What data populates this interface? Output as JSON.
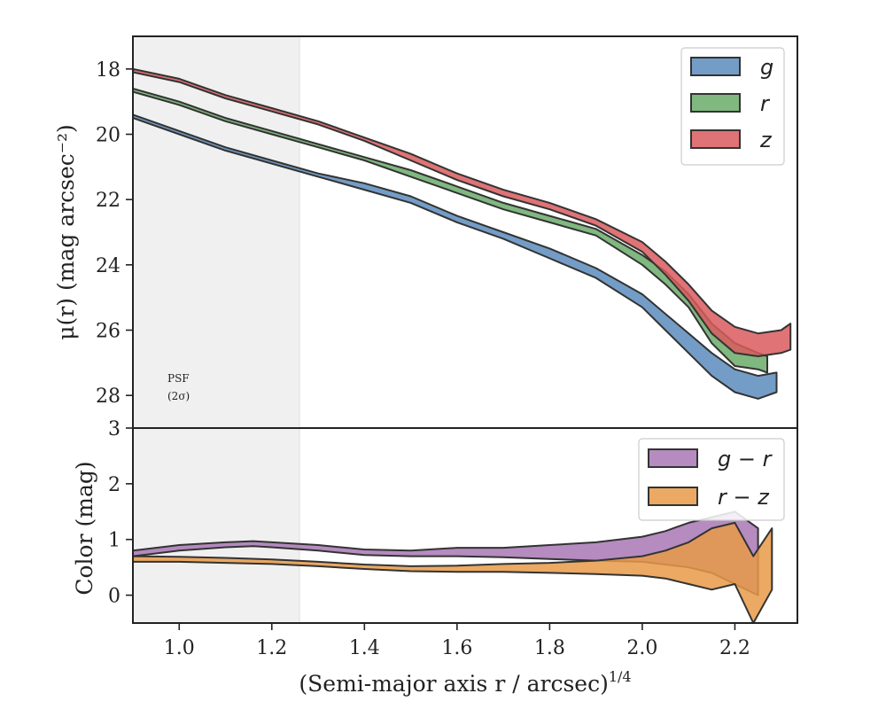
{
  "chart_data": [
    {
      "type": "area",
      "panel": "surface-brightness",
      "ylabel": "μ(r) (mag arcsec⁻²)",
      "xlim": [
        0.9,
        2.335
      ],
      "ylim": [
        29.0,
        17.0
      ],
      "y_inverted": true,
      "yticks": [
        18,
        20,
        22,
        24,
        26,
        28
      ],
      "psf_region": {
        "x_range": [
          0.9,
          1.26
        ],
        "label_line1": "PSF",
        "label_line2": "(2σ)"
      },
      "legend": {
        "placement": "top-right",
        "entries": [
          "g",
          "r",
          "z"
        ]
      },
      "series": [
        {
          "name": "g",
          "color": "#5b8cbd",
          "x": [
            0.9,
            1.0,
            1.1,
            1.2,
            1.3,
            1.4,
            1.5,
            1.6,
            1.7,
            1.8,
            1.9,
            2.0,
            2.05,
            2.1,
            2.15,
            2.2,
            2.25,
            2.29
          ],
          "lower": [
            19.4,
            19.9,
            20.4,
            20.8,
            21.2,
            21.5,
            21.9,
            22.5,
            23.0,
            23.5,
            24.1,
            24.9,
            25.5,
            26.1,
            26.7,
            27.2,
            27.4,
            27.3
          ],
          "upper": [
            19.5,
            20.0,
            20.5,
            20.9,
            21.3,
            21.7,
            22.1,
            22.7,
            23.2,
            23.8,
            24.4,
            25.3,
            26.0,
            26.7,
            27.4,
            27.9,
            28.1,
            27.9
          ]
        },
        {
          "name": "r",
          "color": "#6aab6a",
          "x": [
            0.9,
            1.0,
            1.1,
            1.2,
            1.3,
            1.4,
            1.5,
            1.6,
            1.7,
            1.8,
            1.9,
            2.0,
            2.05,
            2.1,
            2.15,
            2.2,
            2.25,
            2.27
          ],
          "lower": [
            18.6,
            19.0,
            19.5,
            19.9,
            20.3,
            20.7,
            21.1,
            21.6,
            22.1,
            22.5,
            22.9,
            23.7,
            24.2,
            24.9,
            25.8,
            26.4,
            26.7,
            26.8
          ],
          "upper": [
            18.7,
            19.1,
            19.6,
            20.0,
            20.4,
            20.8,
            21.3,
            21.8,
            22.3,
            22.7,
            23.1,
            24.0,
            24.6,
            25.3,
            26.4,
            27.1,
            27.2,
            27.3
          ]
        },
        {
          "name": "z",
          "color": "#d95a5e",
          "x": [
            0.9,
            1.0,
            1.1,
            1.2,
            1.3,
            1.4,
            1.5,
            1.6,
            1.7,
            1.8,
            1.9,
            2.0,
            2.05,
            2.1,
            2.15,
            2.2,
            2.25,
            2.3,
            2.32
          ],
          "lower": [
            18.0,
            18.3,
            18.8,
            19.2,
            19.6,
            20.1,
            20.6,
            21.2,
            21.7,
            22.1,
            22.6,
            23.3,
            23.9,
            24.6,
            25.4,
            25.9,
            26.1,
            26.0,
            25.8
          ],
          "upper": [
            18.1,
            18.4,
            18.9,
            19.3,
            19.7,
            20.2,
            20.8,
            21.4,
            21.9,
            22.3,
            22.8,
            23.6,
            24.3,
            25.1,
            26.1,
            26.7,
            26.8,
            26.7,
            26.6
          ]
        }
      ]
    },
    {
      "type": "area",
      "panel": "color",
      "xlabel": "(Semi-major axis r / arcsec)^1/4",
      "ylabel": "Color (mag)",
      "xlim": [
        0.9,
        2.335
      ],
      "ylim": [
        -0.5,
        3.0
      ],
      "yticks": [
        0,
        1,
        2,
        3
      ],
      "xticks": [
        1.0,
        1.2,
        1.4,
        1.6,
        1.8,
        2.0,
        2.2
      ],
      "legend": {
        "placement": "top-right",
        "entries": [
          "g − r",
          "r − z"
        ]
      },
      "series": [
        {
          "name": "g − r",
          "color": "#a877b5",
          "x": [
            0.9,
            1.0,
            1.1,
            1.16,
            1.2,
            1.3,
            1.4,
            1.5,
            1.6,
            1.7,
            1.8,
            1.9,
            2.0,
            2.05,
            2.1,
            2.15,
            2.2,
            2.25
          ],
          "lower": [
            0.7,
            0.8,
            0.86,
            0.88,
            0.86,
            0.8,
            0.72,
            0.7,
            0.7,
            0.68,
            0.65,
            0.62,
            0.6,
            0.55,
            0.5,
            0.4,
            0.2,
            0.0
          ],
          "upper": [
            0.8,
            0.9,
            0.95,
            0.97,
            0.95,
            0.9,
            0.82,
            0.8,
            0.85,
            0.85,
            0.9,
            0.95,
            1.05,
            1.15,
            1.3,
            1.4,
            1.5,
            1.2
          ]
        },
        {
          "name": "r − z",
          "color": "#e89a48",
          "x": [
            0.9,
            1.0,
            1.1,
            1.2,
            1.3,
            1.4,
            1.5,
            1.6,
            1.7,
            1.8,
            1.9,
            2.0,
            2.05,
            2.1,
            2.15,
            2.2,
            2.24,
            2.28
          ],
          "lower": [
            0.6,
            0.6,
            0.58,
            0.56,
            0.52,
            0.47,
            0.43,
            0.42,
            0.42,
            0.4,
            0.38,
            0.35,
            0.3,
            0.2,
            0.1,
            0.2,
            -0.5,
            0.1
          ],
          "upper": [
            0.7,
            0.69,
            0.67,
            0.64,
            0.6,
            0.55,
            0.52,
            0.53,
            0.56,
            0.58,
            0.62,
            0.7,
            0.8,
            0.95,
            1.2,
            1.3,
            0.7,
            1.2
          ]
        }
      ]
    }
  ]
}
